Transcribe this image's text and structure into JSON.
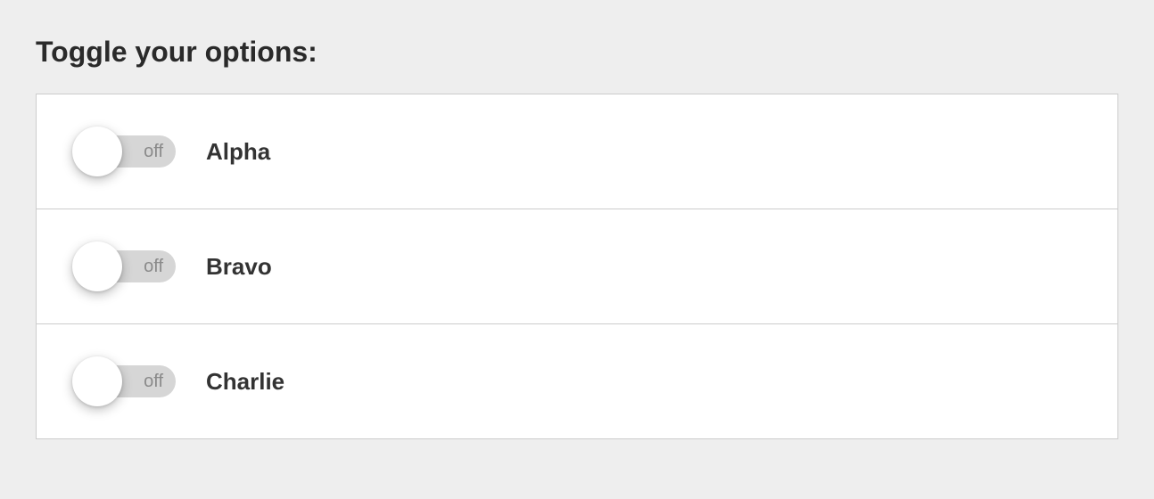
{
  "title": "Toggle your options:",
  "toggle_off_text": "off",
  "options": [
    {
      "label": "Alpha",
      "state": "off"
    },
    {
      "label": "Bravo",
      "state": "off"
    },
    {
      "label": "Charlie",
      "state": "off"
    }
  ],
  "colors": {
    "page_background": "#eeeeee",
    "panel_background": "#ffffff",
    "border": "#cccccc",
    "title_text": "#2a2a2a",
    "label_text": "#333333",
    "track_background": "#d6d6d6",
    "track_text": "#8a8a8a",
    "knob_background": "#ffffff"
  }
}
